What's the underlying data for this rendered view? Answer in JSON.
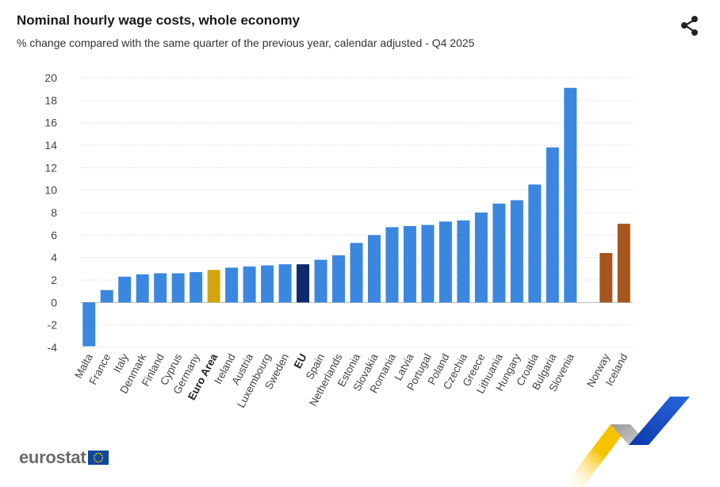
{
  "header": {
    "title": "Nominal hourly wage costs, whole economy",
    "subtitle": "% change compared with the same quarter of the previous year, calendar adjusted - Q4 2025"
  },
  "footer": {
    "brand": "eurostat"
  },
  "colors": {
    "member": "#3b87e0",
    "euro_area": "#d1a50e",
    "eu": "#0d2a6e",
    "efta": "#a5561c",
    "grid": "#dcdcdc"
  },
  "chart_data": {
    "type": "bar",
    "title": "Nominal hourly wage costs, whole economy",
    "subtitle": "% change compared with the same quarter of the previous year, calendar adjusted - Q4 2025",
    "xlabel": "",
    "ylabel": "",
    "ylim": [
      -4,
      20
    ],
    "yticks": [
      -4,
      -2,
      0,
      2,
      4,
      6,
      8,
      10,
      12,
      14,
      16,
      18,
      20
    ],
    "grid": true,
    "categories": [
      "Malta",
      "France",
      "Italy",
      "Denmark",
      "Finland",
      "Cyprus",
      "Germany",
      "Euro Area",
      "Ireland",
      "Austria",
      "Luxembourg",
      "Sweden",
      "EU",
      "Spain",
      "Netherlands",
      "Estonia",
      "Slovakia",
      "Romania",
      "Latvia",
      "Portugal",
      "Poland",
      "Czechia",
      "Greece",
      "Lithuania",
      "Hungary",
      "Croatia",
      "Bulgaria",
      "Slovenia",
      "",
      "Norway",
      "Iceland"
    ],
    "values": [
      -3.9,
      1.1,
      2.3,
      2.5,
      2.6,
      2.6,
      2.7,
      2.9,
      3.1,
      3.2,
      3.3,
      3.4,
      3.4,
      3.8,
      4.2,
      5.3,
      6.0,
      6.7,
      6.8,
      6.9,
      7.2,
      7.3,
      8.0,
      8.8,
      9.1,
      10.5,
      13.8,
      19.1,
      null,
      4.4,
      7.0
    ],
    "groups": [
      "member",
      "member",
      "member",
      "member",
      "member",
      "member",
      "member",
      "euro_area",
      "member",
      "member",
      "member",
      "member",
      "eu",
      "member",
      "member",
      "member",
      "member",
      "member",
      "member",
      "member",
      "member",
      "member",
      "member",
      "member",
      "member",
      "member",
      "member",
      "member",
      "gap",
      "efta",
      "efta"
    ],
    "bold_labels": [
      "Euro Area",
      "EU"
    ]
  }
}
